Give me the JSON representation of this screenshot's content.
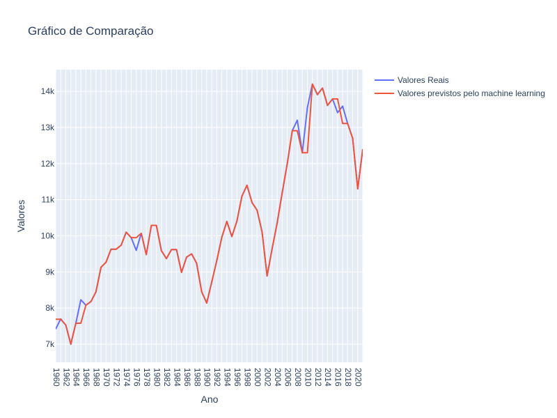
{
  "chart_data": {
    "type": "line",
    "title": "Gráfico de Comparação",
    "xlabel": "Ano",
    "ylabel": "Valores",
    "xlim": [
      1960,
      2021
    ],
    "ylim": [
      6500,
      14600
    ],
    "x_ticks": [
      "1960",
      "1962",
      "1964",
      "1966",
      "1968",
      "1970",
      "1972",
      "1974",
      "1976",
      "1978",
      "1980",
      "1982",
      "1984",
      "1986",
      "1988",
      "1990",
      "1992",
      "1994",
      "1996",
      "1998",
      "2000",
      "2002",
      "2004",
      "2006",
      "2008",
      "2010",
      "2012",
      "2014",
      "2016",
      "2018",
      "2020"
    ],
    "y_ticks": [
      {
        "value": 7000,
        "label": "7k"
      },
      {
        "value": 8000,
        "label": "8k"
      },
      {
        "value": 9000,
        "label": "9k"
      },
      {
        "value": 10000,
        "label": "10k"
      },
      {
        "value": 11000,
        "label": "11k"
      },
      {
        "value": 12000,
        "label": "12k"
      },
      {
        "value": 13000,
        "label": "13k"
      },
      {
        "value": 14000,
        "label": "14k"
      }
    ],
    "grid": true,
    "legend_position": "top-right, outside plot",
    "x": [
      1960,
      1961,
      1962,
      1963,
      1964,
      1965,
      1966,
      1967,
      1968,
      1969,
      1970,
      1971,
      1972,
      1973,
      1974,
      1975,
      1976,
      1977,
      1978,
      1979,
      1980,
      1981,
      1982,
      1983,
      1984,
      1985,
      1986,
      1987,
      1988,
      1989,
      1990,
      1991,
      1992,
      1993,
      1994,
      1995,
      1996,
      1997,
      1998,
      1999,
      2000,
      2001,
      2002,
      2003,
      2004,
      2005,
      2006,
      2007,
      2008,
      2009,
      2010,
      2011,
      2012,
      2013,
      2014,
      2015,
      2016,
      2017,
      2018,
      2019,
      2020,
      2021
    ],
    "series": [
      {
        "name": "Valores Reais",
        "color": "#636efa",
        "values": [
          7420,
          7700,
          7530,
          7000,
          7580,
          8230,
          8080,
          8180,
          8450,
          9130,
          9270,
          9630,
          9630,
          9740,
          10100,
          9950,
          9600,
          10070,
          9480,
          10290,
          10290,
          9590,
          9370,
          9620,
          9620,
          8990,
          9410,
          9500,
          9240,
          8450,
          8140,
          8720,
          9310,
          9960,
          10400,
          9980,
          10410,
          11100,
          11400,
          10920,
          10710,
          10110,
          8890,
          9650,
          10360,
          11190,
          12000,
          12910,
          13200,
          12300,
          13550,
          14200,
          13910,
          14090,
          13610,
          13790,
          13410,
          13590,
          13110,
          12700,
          11300,
          12400
        ]
      },
      {
        "name": "Valores previstos pelo machine learning",
        "color": "#ef553b",
        "values": [
          7690,
          7690,
          7530,
          7000,
          7580,
          7580,
          8080,
          8180,
          8450,
          9130,
          9270,
          9630,
          9630,
          9740,
          10100,
          9950,
          9950,
          10070,
          9480,
          10290,
          10290,
          9590,
          9370,
          9620,
          9620,
          8990,
          9410,
          9500,
          9240,
          8450,
          8140,
          8720,
          9310,
          9960,
          10400,
          9980,
          10410,
          11100,
          11400,
          10920,
          10710,
          10110,
          8890,
          9650,
          10360,
          11190,
          12000,
          12910,
          12910,
          12300,
          12300,
          14200,
          13910,
          14090,
          13610,
          13790,
          13790,
          13110,
          13110,
          12700,
          11300,
          12400
        ]
      }
    ]
  }
}
